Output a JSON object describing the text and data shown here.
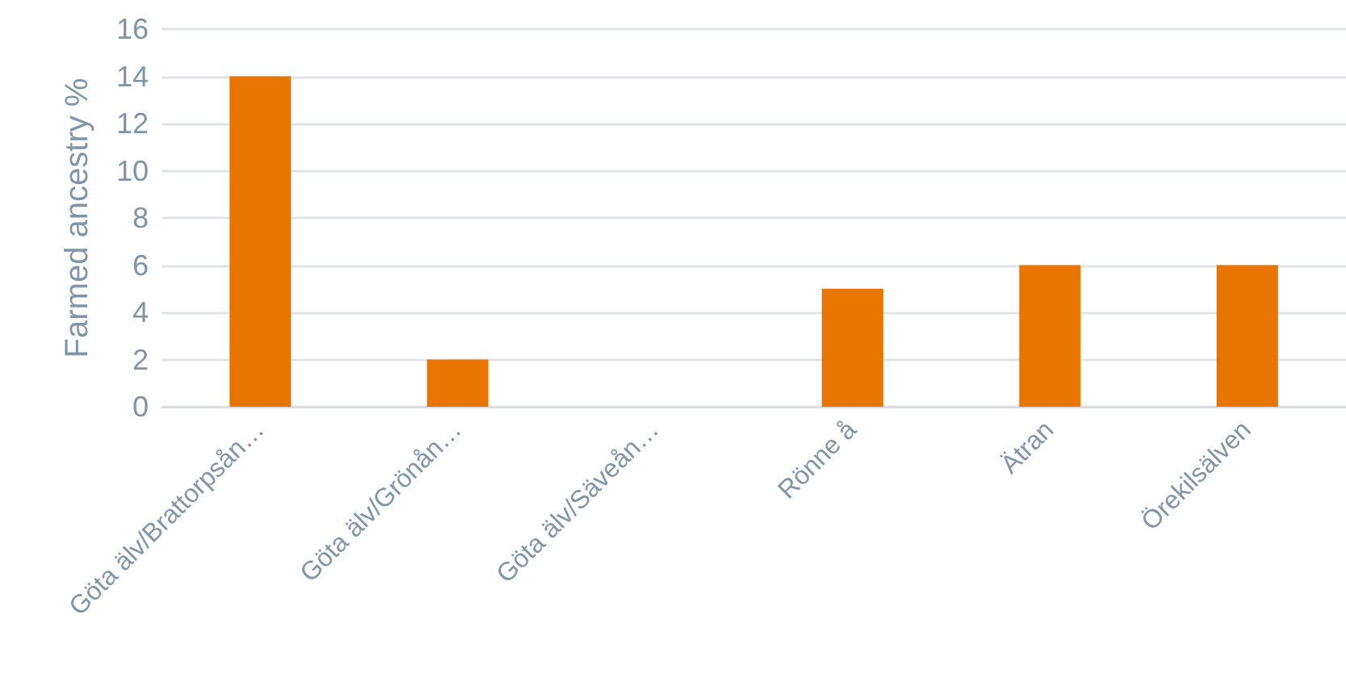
{
  "chart_data": {
    "type": "bar",
    "ylabel": "Farmed ancestry %",
    "categories": [
      "Göta älv/Brattorpsån…",
      "Göta älv/Grönån…",
      "Göta älv/Säveån…",
      "Rönne å",
      "Ätran",
      "Örekilsälven"
    ],
    "values": [
      14,
      2,
      0,
      5,
      6,
      6
    ],
    "color": "#e87500",
    "ylim": [
      0,
      16
    ],
    "yticks": [
      0,
      2,
      4,
      6,
      8,
      10,
      12,
      14,
      16
    ],
    "grid": "y"
  }
}
